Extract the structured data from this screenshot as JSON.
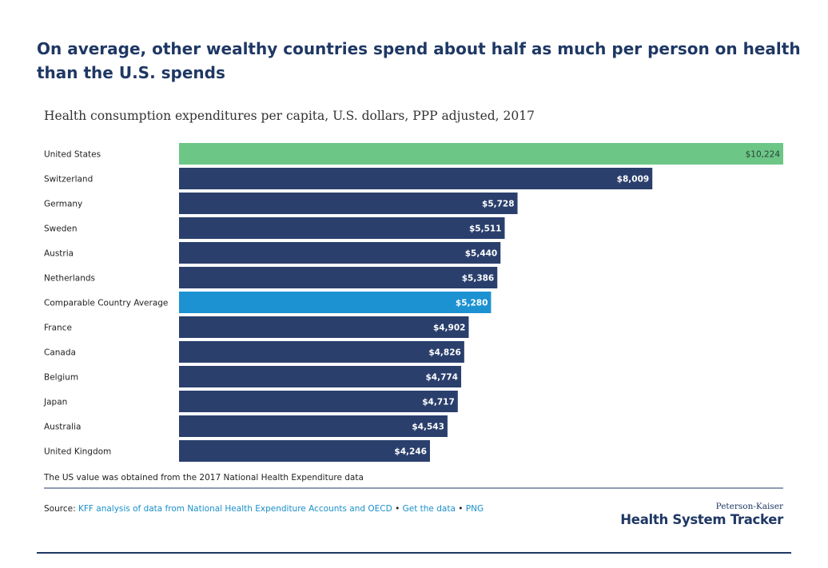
{
  "chart_data": {
    "type": "bar",
    "orientation": "horizontal",
    "title": "On average, other wealthy countries spend about half as much per person on health than the U.S. spends",
    "subtitle": "Health consumption expenditures per capita, U.S. dollars, PPP adjusted, 2017",
    "categories": [
      "United States",
      "Switzerland",
      "Germany",
      "Sweden",
      "Austria",
      "Netherlands",
      "Comparable Country Average",
      "France",
      "Canada",
      "Belgium",
      "Japan",
      "Australia",
      "United Kingdom"
    ],
    "values": [
      10224,
      8009,
      5728,
      5511,
      5440,
      5386,
      5280,
      4902,
      4826,
      4774,
      4717,
      4543,
      4246
    ],
    "value_labels": [
      "$10,224",
      "$8,009",
      "$5,728",
      "$5,511",
      "$5,440",
      "$5,386",
      "$5,280",
      "$4,902",
      "$4,826",
      "$4,774",
      "$4,717",
      "$4,543",
      "$4,246"
    ],
    "colors": [
      "#6cc786",
      "#2a3f6c",
      "#2a3f6c",
      "#2a3f6c",
      "#2a3f6c",
      "#2a3f6c",
      "#1c92d2",
      "#2a3f6c",
      "#2a3f6c",
      "#2a3f6c",
      "#2a3f6c",
      "#2a3f6c",
      "#2a3f6c"
    ],
    "note": "The US value was obtained from the 2017 National Health Expenditure data",
    "source": {
      "label": "Source:",
      "links": [
        "KFF analysis of data from National Health Expenditure Accounts and OECD",
        "Get the data",
        "PNG"
      ],
      "separator": "•"
    },
    "branding": {
      "top": "Peterson-Kaiser",
      "main": "Health System Tracker"
    }
  }
}
